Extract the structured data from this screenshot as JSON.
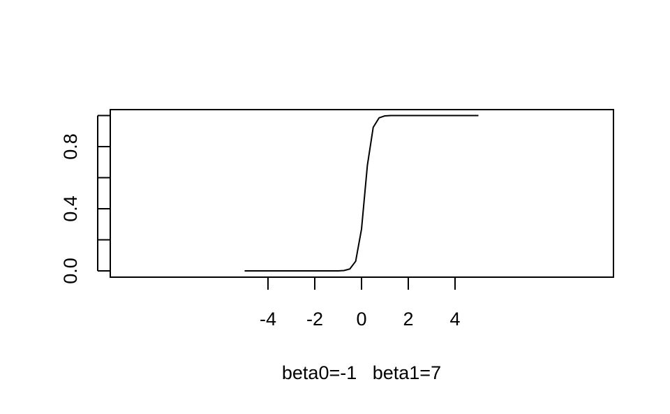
{
  "chart_data": {
    "type": "line",
    "xlabel": "beta0=-1   beta1=7",
    "ylabel": "",
    "xlim": [
      -5,
      5
    ],
    "ylim": [
      0,
      1
    ],
    "grid": false,
    "x_ticks": [
      -4,
      -2,
      0,
      2,
      4
    ],
    "x_tick_labels": [
      "-4",
      "-2",
      "0",
      "2",
      "4"
    ],
    "y_ticks": [
      0,
      0.2,
      0.4,
      0.6,
      0.8,
      1.0
    ],
    "y_tick_labels": [
      "0.0",
      "",
      "0.4",
      "",
      "0.8",
      ""
    ],
    "series": [
      {
        "color": "#000000",
        "x": [
          -5,
          -4.75,
          -4.5,
          -4.25,
          -4,
          -3.75,
          -3.5,
          -3.25,
          -3,
          -2.75,
          -2.5,
          -2.25,
          -2,
          -1.75,
          -1.5,
          -1.25,
          -1,
          -0.75,
          -0.5,
          -0.25,
          0,
          0.25,
          0.5,
          0.75,
          1,
          1.25,
          1.5,
          1.75,
          2,
          2.25,
          2.5,
          2.75,
          3,
          3.25,
          3.5,
          3.75,
          4,
          4.25,
          4.5,
          4.75,
          5
        ],
        "y": [
          0,
          0,
          0,
          0,
          0,
          0,
          0,
          0,
          0,
          0,
          0,
          0,
          0,
          0,
          0,
          0,
          0.0001,
          0.0022,
          0.0123,
          0.062,
          0.269,
          0.679,
          0.924,
          0.985,
          0.998,
          1,
          1,
          1,
          1,
          1,
          1,
          1,
          1,
          1,
          1,
          1,
          1,
          1,
          1,
          1,
          1
        ]
      }
    ]
  }
}
